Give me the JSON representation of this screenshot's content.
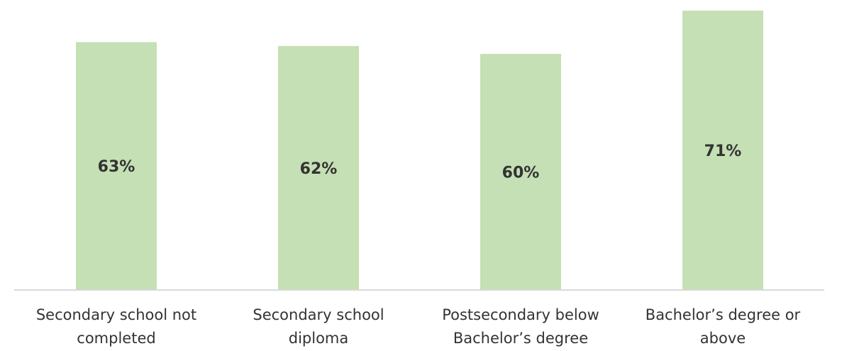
{
  "chart_data": {
    "type": "bar",
    "categories": [
      [
        "Secondary school not",
        "completed"
      ],
      [
        "Secondary school",
        "diploma"
      ],
      [
        "Postsecondary below",
        "Bachelor’s degree"
      ],
      [
        "Bachelor’s degree or",
        "above"
      ]
    ],
    "values": [
      63,
      62,
      60,
      71
    ],
    "value_labels": [
      "63%",
      "62%",
      "60%",
      "71%"
    ],
    "title": "",
    "xlabel": "",
    "ylabel": "",
    "ylim": [
      0,
      71
    ],
    "grid": false,
    "legend": "none",
    "bar_color": "#c5e0b4",
    "axis_color": "#d9d9d9",
    "text_color": "#333333"
  }
}
